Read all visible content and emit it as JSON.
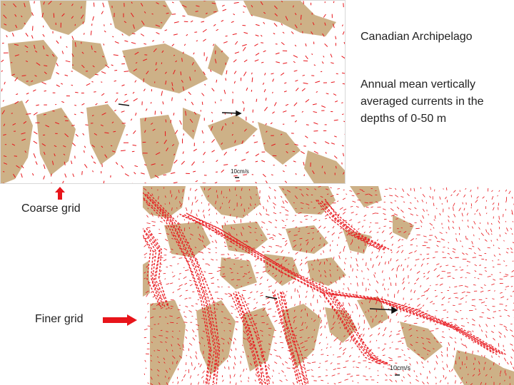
{
  "slide": {
    "title": "Canadian Archipelago",
    "description": "Annual mean vertically averaged currents in the depths of 0-50 m",
    "coarse_label": "Coarse grid",
    "finer_label": "Finer grid"
  },
  "maps": {
    "coarse": {
      "scale_label": "10cm/s"
    },
    "fine": {
      "scale_label": "10cm/s"
    }
  },
  "colors": {
    "land": "#cdb187",
    "ocean": "#ffffff",
    "current_vectors": "#e8141a",
    "arrow": "#e8141a",
    "text": "#222222"
  }
}
